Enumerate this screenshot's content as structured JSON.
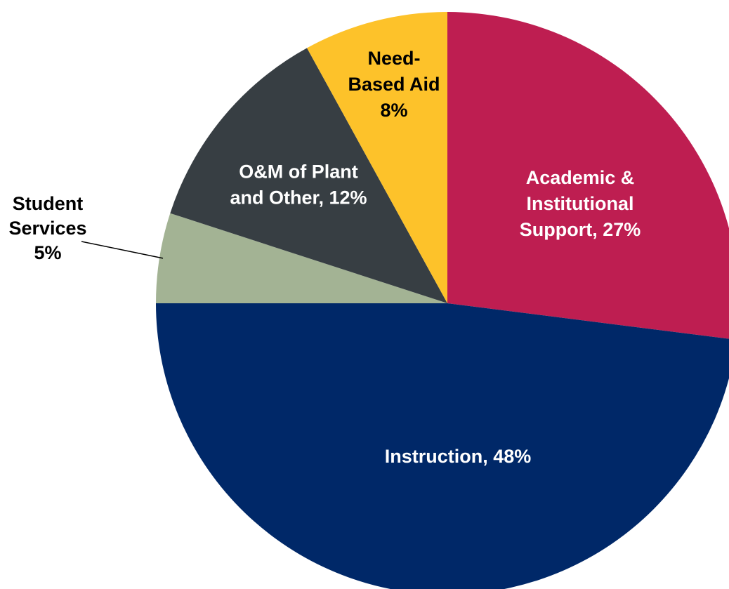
{
  "chart_data": {
    "type": "pie",
    "start_angle_deg": 0,
    "direction": "clockwise",
    "slices": [
      {
        "category": "Academic & Institutional Support",
        "value": 27,
        "color": "#BE1E51",
        "label_lines": [
          "Academic &",
          "Institutional",
          "Support, 27%"
        ],
        "label_color": "#ffffff",
        "label_placement": "inside"
      },
      {
        "category": "Instruction",
        "value": 48,
        "color": "#002868",
        "label_lines": [
          "Instruction, 48%"
        ],
        "label_color": "#ffffff",
        "label_placement": "inside"
      },
      {
        "category": "Student Services",
        "value": 5,
        "color": "#A3B394",
        "label_lines": [
          "Student",
          "Services",
          "5%"
        ],
        "label_color": "#000000",
        "label_placement": "outside-left"
      },
      {
        "category": "O&M of Plant and Other",
        "value": 12,
        "color": "#373E43",
        "label_lines": [
          "O&M of Plant",
          "and Other, 12%"
        ],
        "label_color": "#ffffff",
        "label_placement": "inside"
      },
      {
        "category": "Need-Based Aid",
        "value": 8,
        "color": "#FDC22A",
        "label_lines": [
          "Need-",
          "Based Aid",
          "8%"
        ],
        "label_color": "#000000",
        "label_placement": "inside"
      }
    ]
  }
}
